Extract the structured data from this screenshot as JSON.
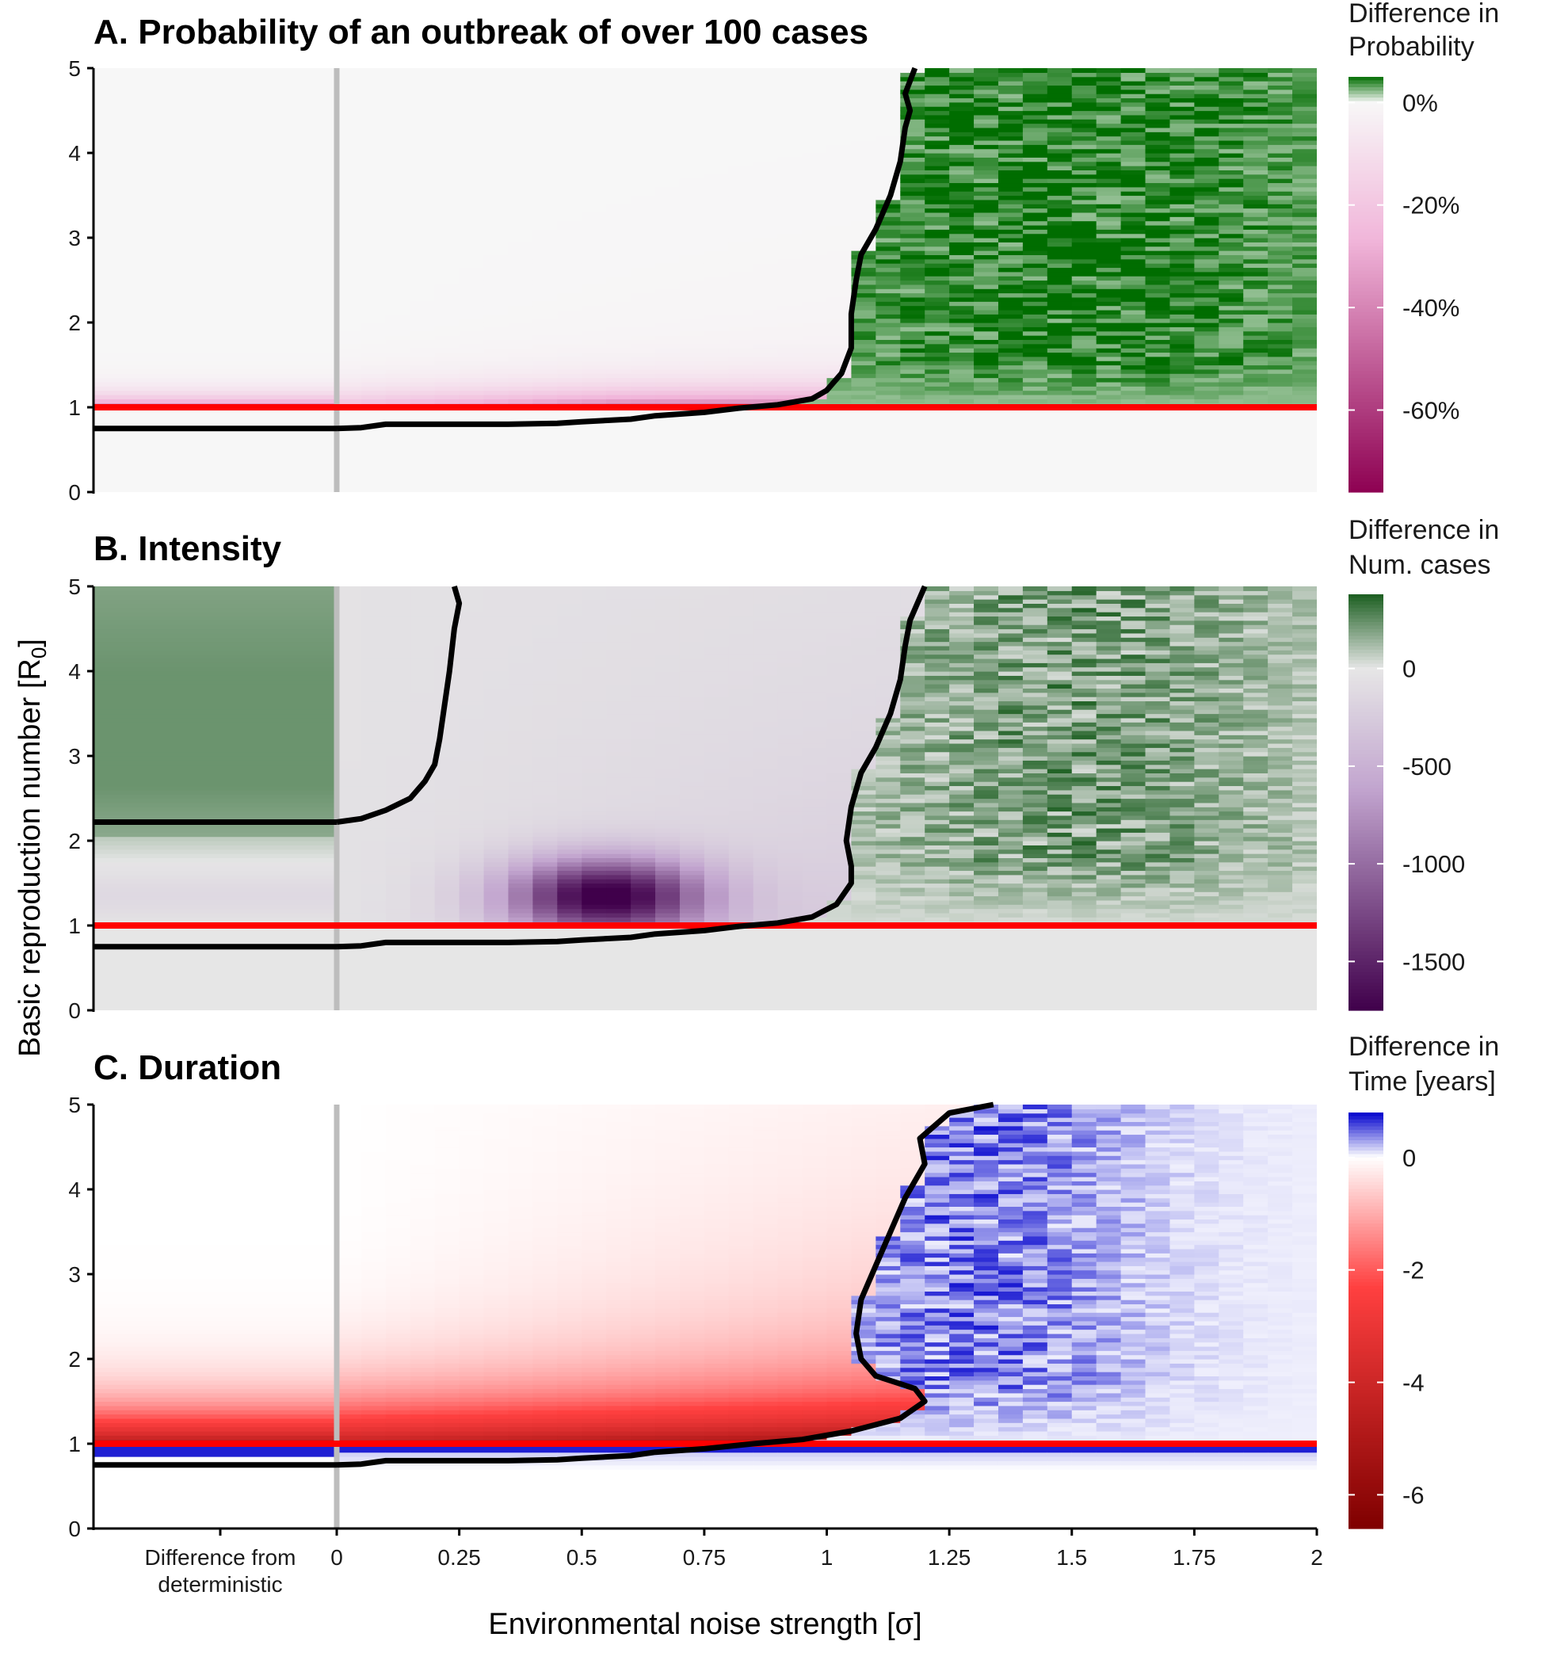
{
  "chart_data": {
    "type": "heatmap",
    "xlabel": "Environmental noise strength [σ]",
    "ylabel": "Basic reproduction number  [R",
    "ylabel_sub": "0",
    "ylabel_end": "]",
    "x_extra_category_label_line1": "Difference from",
    "x_extra_category_label_line2": "deterministic",
    "x_ticks": [
      "0",
      "0.25",
      "0.5",
      "0.75",
      "1",
      "1.25",
      "1.5",
      "1.75",
      "2"
    ],
    "xlim": [
      -0.5,
      2
    ],
    "ylim": [
      0,
      5
    ],
    "y_ticks": [
      "0",
      "1",
      "2",
      "3",
      "4",
      "5"
    ],
    "threshold_line": {
      "y": 1,
      "color": "#ff0000"
    },
    "divider_line": {
      "x": 0,
      "color": "#bdbdbd"
    },
    "panels": [
      {
        "title": "A. Probability of an outbreak of over 100 cases",
        "legend_title_line1": "Difference in",
        "legend_title_line2": "Probability",
        "legend_ticks": [
          {
            "label": "0%",
            "value": 0
          },
          {
            "label": "-20%",
            "value": -20
          },
          {
            "label": "-40%",
            "value": -40
          },
          {
            "label": "-60%",
            "value": -60
          }
        ],
        "legend_range": [
          -76,
          5
        ],
        "colors": {
          "positive": "#006d00",
          "zero": "#f7f7f7",
          "negative": "#8e0152",
          "mid_negative": "#f1b6da"
        },
        "deterministic_contour_R0": 0.75,
        "contour": [
          [
            0,
            0.75
          ],
          [
            0.05,
            0.76
          ],
          [
            0.1,
            0.8
          ],
          [
            0.2,
            0.8
          ],
          [
            0.35,
            0.8
          ],
          [
            0.45,
            0.81
          ],
          [
            0.5,
            0.83
          ],
          [
            0.6,
            0.86
          ],
          [
            0.65,
            0.9
          ],
          [
            0.75,
            0.94
          ],
          [
            0.82,
            0.99
          ],
          [
            0.9,
            1.03
          ],
          [
            0.97,
            1.1
          ],
          [
            1.0,
            1.2
          ],
          [
            1.03,
            1.4
          ],
          [
            1.05,
            1.7
          ],
          [
            1.05,
            2.1
          ],
          [
            1.06,
            2.5
          ],
          [
            1.07,
            2.8
          ],
          [
            1.1,
            3.1
          ],
          [
            1.13,
            3.5
          ],
          [
            1.15,
            3.9
          ],
          [
            1.16,
            4.3
          ],
          [
            1.17,
            4.5
          ],
          [
            1.16,
            4.7
          ],
          [
            1.18,
            5.0
          ]
        ],
        "deterministic_value": {
          "description_note": "",
          "band": [
            [
              0.95,
              -6
            ],
            [
              1.05,
              -12
            ],
            [
              1.15,
              -8
            ],
            [
              1.3,
              -2
            ],
            [
              1.5,
              0
            ]
          ]
        }
      },
      {
        "title": "B. Intensity",
        "legend_title_line1": "Difference in",
        "legend_title_line2": "Num. cases",
        "legend_ticks": [
          {
            "label": "0",
            "value": 0
          },
          {
            "label": "-500",
            "value": -500
          },
          {
            "label": "-1000",
            "value": -1000
          },
          {
            "label": "-1500",
            "value": -1500
          }
        ],
        "legend_range": [
          -1750,
          380
        ],
        "colors": {
          "positive": "#1b5e20",
          "zero": "#e6e6e6",
          "negative": "#40004b",
          "mid_negative": "#c2a5cf"
        },
        "deterministic_contour_R0": 2.22,
        "contour_low": [
          [
            0,
            0.75
          ],
          [
            0.05,
            0.76
          ],
          [
            0.1,
            0.8
          ],
          [
            0.2,
            0.8
          ],
          [
            0.35,
            0.8
          ],
          [
            0.45,
            0.81
          ],
          [
            0.5,
            0.83
          ],
          [
            0.6,
            0.86
          ],
          [
            0.65,
            0.9
          ],
          [
            0.75,
            0.94
          ],
          [
            0.82,
            0.99
          ],
          [
            0.9,
            1.03
          ],
          [
            0.97,
            1.1
          ],
          [
            1.02,
            1.25
          ],
          [
            1.05,
            1.5
          ],
          [
            1.05,
            1.7
          ],
          [
            1.04,
            2.0
          ],
          [
            1.05,
            2.4
          ],
          [
            1.07,
            2.8
          ],
          [
            1.1,
            3.1
          ],
          [
            1.13,
            3.5
          ],
          [
            1.15,
            3.9
          ],
          [
            1.16,
            4.3
          ],
          [
            1.17,
            4.6
          ],
          [
            1.2,
            5.0
          ]
        ],
        "contour_high": [
          [
            0,
            2.22
          ],
          [
            0.05,
            2.26
          ],
          [
            0.1,
            2.36
          ],
          [
            0.15,
            2.5
          ],
          [
            0.18,
            2.7
          ],
          [
            0.2,
            2.9
          ],
          [
            0.21,
            3.2
          ],
          [
            0.22,
            3.6
          ],
          [
            0.23,
            4.0
          ],
          [
            0.24,
            4.5
          ],
          [
            0.25,
            4.8
          ],
          [
            0.24,
            5.0
          ]
        ]
      },
      {
        "title": "C. Duration",
        "legend_title_line1": "Difference in",
        "legend_title_line2": "Time [years]",
        "legend_ticks": [
          {
            "label": "0",
            "value": 0
          },
          {
            "label": "-2",
            "value": -2
          },
          {
            "label": "-4",
            "value": -4
          },
          {
            "label": "-6",
            "value": -6
          }
        ],
        "legend_range": [
          -6.6,
          0.8
        ],
        "colors": {
          "positive": "#0000cd",
          "zero": "#ffffff",
          "negative": "#7f0000",
          "mid_negative": "#ff4040"
        },
        "deterministic_contour_R0": 0.75,
        "contour": [
          [
            0,
            0.75
          ],
          [
            0.05,
            0.76
          ],
          [
            0.1,
            0.8
          ],
          [
            0.2,
            0.8
          ],
          [
            0.35,
            0.8
          ],
          [
            0.45,
            0.81
          ],
          [
            0.5,
            0.83
          ],
          [
            0.6,
            0.86
          ],
          [
            0.65,
            0.9
          ],
          [
            0.75,
            0.94
          ],
          [
            0.85,
            1.0
          ],
          [
            0.95,
            1.05
          ],
          [
            1.05,
            1.15
          ],
          [
            1.15,
            1.3
          ],
          [
            1.2,
            1.5
          ],
          [
            1.18,
            1.65
          ],
          [
            1.1,
            1.8
          ],
          [
            1.07,
            2.0
          ],
          [
            1.06,
            2.3
          ],
          [
            1.07,
            2.7
          ],
          [
            1.1,
            3.1
          ],
          [
            1.13,
            3.5
          ],
          [
            1.16,
            3.9
          ],
          [
            1.2,
            4.3
          ],
          [
            1.19,
            4.6
          ],
          [
            1.25,
            4.9
          ],
          [
            1.34,
            5.0
          ]
        ]
      }
    ]
  }
}
